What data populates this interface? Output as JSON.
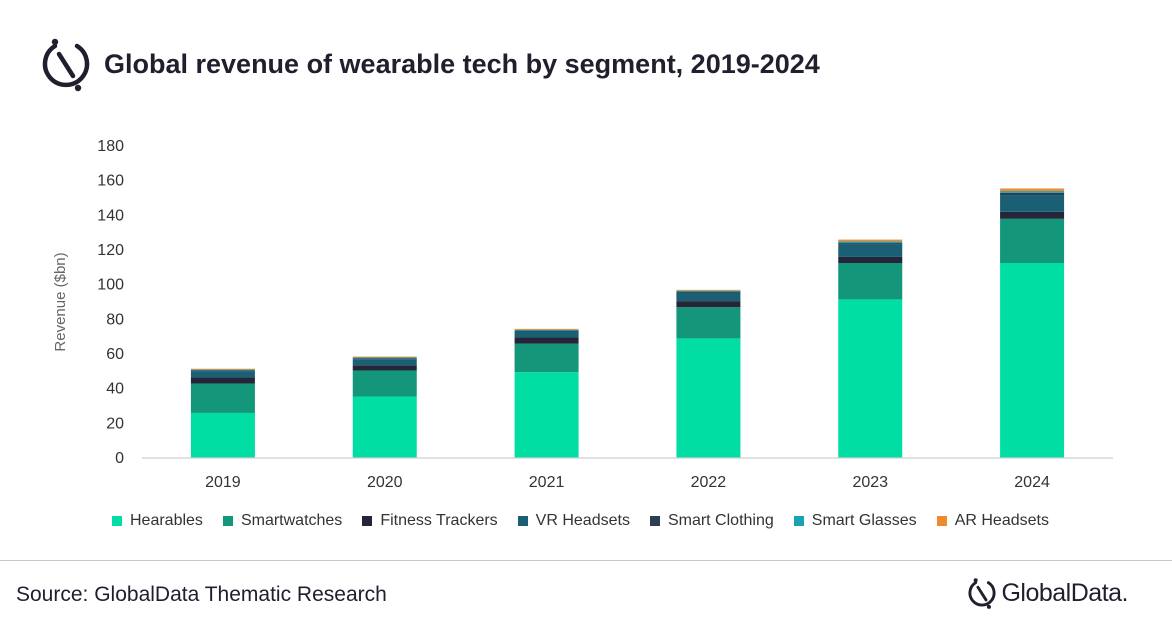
{
  "title": "Global revenue of wearable tech by segment, 2019-2024",
  "source": "Source: GlobalData Thematic Research",
  "brand": "GlobalData.",
  "chart_data": {
    "type": "bar",
    "stacked": true,
    "title": "Global revenue of wearable tech by segment, 2019-2024",
    "xlabel": "",
    "ylabel": "Revenue ($bn)",
    "ylim": [
      0,
      180
    ],
    "yticks": [
      0,
      20,
      40,
      60,
      80,
      100,
      120,
      140,
      160,
      180
    ],
    "categories": [
      "2019",
      "2020",
      "2021",
      "2022",
      "2023",
      "2024"
    ],
    "legend_position": "bottom",
    "series": [
      {
        "name": "Hearables",
        "color": "#00dea3",
        "values": [
          26,
          35.5,
          49.5,
          69,
          91.5,
          112.5
        ]
      },
      {
        "name": "Smartwatches",
        "color": "#14967a",
        "values": [
          17,
          15,
          16.5,
          18,
          21,
          25.5
        ]
      },
      {
        "name": "Fitness Trackers",
        "color": "#25253a",
        "values": [
          3.5,
          3,
          3.5,
          3.5,
          3.5,
          4
        ]
      },
      {
        "name": "VR Headsets",
        "color": "#1b5f75",
        "values": [
          3.5,
          3.5,
          3.5,
          5,
          7,
          9.5
        ]
      },
      {
        "name": "Smart Clothing",
        "color": "#2e3e52",
        "values": [
          0.5,
          0.5,
          0.5,
          0.5,
          1,
          1.5
        ]
      },
      {
        "name": "Smart Glasses",
        "color": "#17a3b0",
        "values": [
          0.5,
          0.5,
          0.5,
          0.5,
          1,
          1
        ]
      },
      {
        "name": "AR Headsets",
        "color": "#f08a30",
        "values": [
          0.5,
          0.5,
          0.5,
          0.5,
          1,
          1.5
        ]
      }
    ]
  }
}
